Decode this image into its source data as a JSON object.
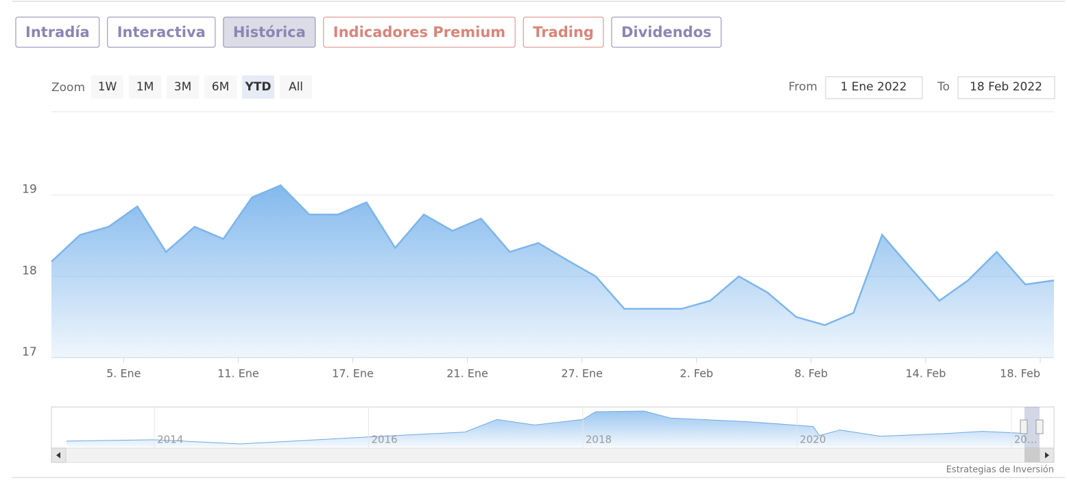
{
  "tabs": [
    "Intradía",
    "Interactiva",
    "Histórica",
    "Indicadores Premium",
    "Trading",
    "Dividendos"
  ],
  "zoom": {
    "label": "Zoom",
    "buttons": [
      "1W",
      "1M",
      "3M",
      "6M",
      "YTD",
      "All"
    ]
  },
  "range": {
    "from_label": "From",
    "from": "1 Ene 2022",
    "to_label": "To",
    "to": "18 Feb 2022"
  },
  "credit": "Estrategias de Inversión",
  "chart_data": {
    "type": "area",
    "x": [
      "2021-12-31",
      "2022-01-03",
      "2022-01-04",
      "2022-01-05",
      "2022-01-06",
      "2022-01-07",
      "2022-01-10",
      "2022-01-11",
      "2022-01-12",
      "2022-01-13",
      "2022-01-14",
      "2022-01-17",
      "2022-01-18",
      "2022-01-19",
      "2022-01-20",
      "2022-01-21",
      "2022-01-24",
      "2022-01-25",
      "2022-01-26",
      "2022-01-27",
      "2022-01-28",
      "2022-01-31",
      "2022-02-01",
      "2022-02-02",
      "2022-02-03",
      "2022-02-04",
      "2022-02-07",
      "2022-02-08",
      "2022-02-09",
      "2022-02-10",
      "2022-02-11",
      "2022-02-14",
      "2022-02-15",
      "2022-02-16",
      "2022-02-17",
      "2022-02-18"
    ],
    "values": [
      18.18,
      18.51,
      18.61,
      18.86,
      18.3,
      18.61,
      18.46,
      18.97,
      19.12,
      18.76,
      18.76,
      18.91,
      18.35,
      18.76,
      18.56,
      18.71,
      18.3,
      18.41,
      18.2,
      18.0,
      17.6,
      17.6,
      17.6,
      17.7,
      18.0,
      17.8,
      17.5,
      17.4,
      17.55,
      18.51,
      18.1,
      17.7,
      17.95,
      18.3,
      17.9,
      17.95
    ],
    "color": "#7cb5ec",
    "ylim": [
      17,
      20
    ],
    "yticks": [
      17,
      18,
      19
    ],
    "grid": true,
    "xticks": [
      {
        "value": "2022-01-05",
        "label": "5. Ene"
      },
      {
        "value": "2022-01-11",
        "label": "11. Ene"
      },
      {
        "value": "2022-01-17",
        "label": "17. Ene"
      },
      {
        "value": "2022-01-21",
        "label": "21. Ene"
      },
      {
        "value": "2022-01-27",
        "label": "27. Ene"
      },
      {
        "value": "2022-02-02",
        "label": "2. Feb"
      },
      {
        "value": "2022-02-08",
        "label": "8. Feb"
      },
      {
        "value": "2022-02-14",
        "label": "14. Feb"
      },
      {
        "value": "2022-02-18",
        "label": "18. Feb"
      }
    ],
    "navigator": {
      "x": [
        2013.18,
        2014.0,
        2014.8,
        2016.0,
        2016.9,
        2017.2,
        2017.55,
        2018.0,
        2018.12,
        2018.57,
        2018.82,
        2019.52,
        2020.15,
        2020.21,
        2020.4,
        2020.78,
        2021.41,
        2021.73,
        2022.13
      ],
      "values": [
        16.9,
        17.1,
        16.5,
        17.5,
        18.2,
        20.0,
        19.2,
        20.0,
        21.1,
        21.2,
        20.2,
        19.7,
        19.0,
        17.7,
        18.5,
        17.6,
        18.0,
        18.3,
        18.0
      ],
      "xticks": [
        2014,
        2016,
        2018,
        2020,
        {
          "value": 2022,
          "label": "20…"
        }
      ]
    }
  }
}
